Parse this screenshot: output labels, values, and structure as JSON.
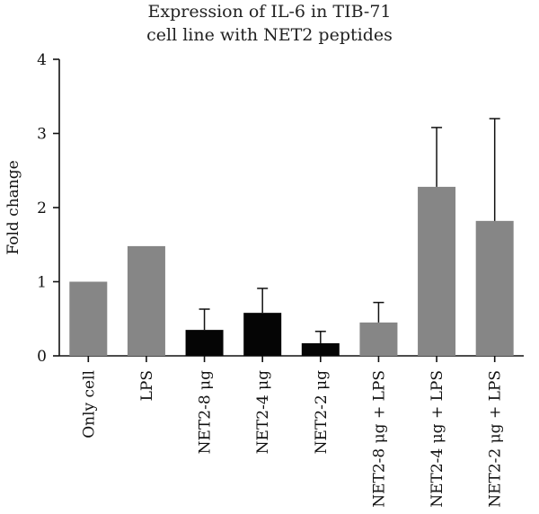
{
  "chart_data": {
    "type": "bar",
    "title_lines": [
      "Expression of IL-6 in TIB-71",
      "cell line with NET2 peptides"
    ],
    "xlabel": "",
    "ylabel": "Fold change",
    "ylim": [
      0,
      4
    ],
    "yticks": [
      0,
      1,
      2,
      3,
      4
    ],
    "grid": false,
    "categories": [
      "Only cell",
      "LPS",
      "NET2-8 μg",
      "NET2-4 μg",
      "NET2-2 μg",
      "NET2-8 μg + LPS",
      "NET2-4 μg + LPS",
      "NET2-2 μg + LPS"
    ],
    "values": [
      1.0,
      1.48,
      0.35,
      0.58,
      0.17,
      0.45,
      2.28,
      1.82
    ],
    "error_upper": [
      null,
      null,
      0.63,
      0.91,
      0.33,
      0.72,
      3.08,
      3.2
    ],
    "colors": [
      "#868686",
      "#868686",
      "#050505",
      "#050505",
      "#050505",
      "#868686",
      "#868686",
      "#868686"
    ]
  }
}
